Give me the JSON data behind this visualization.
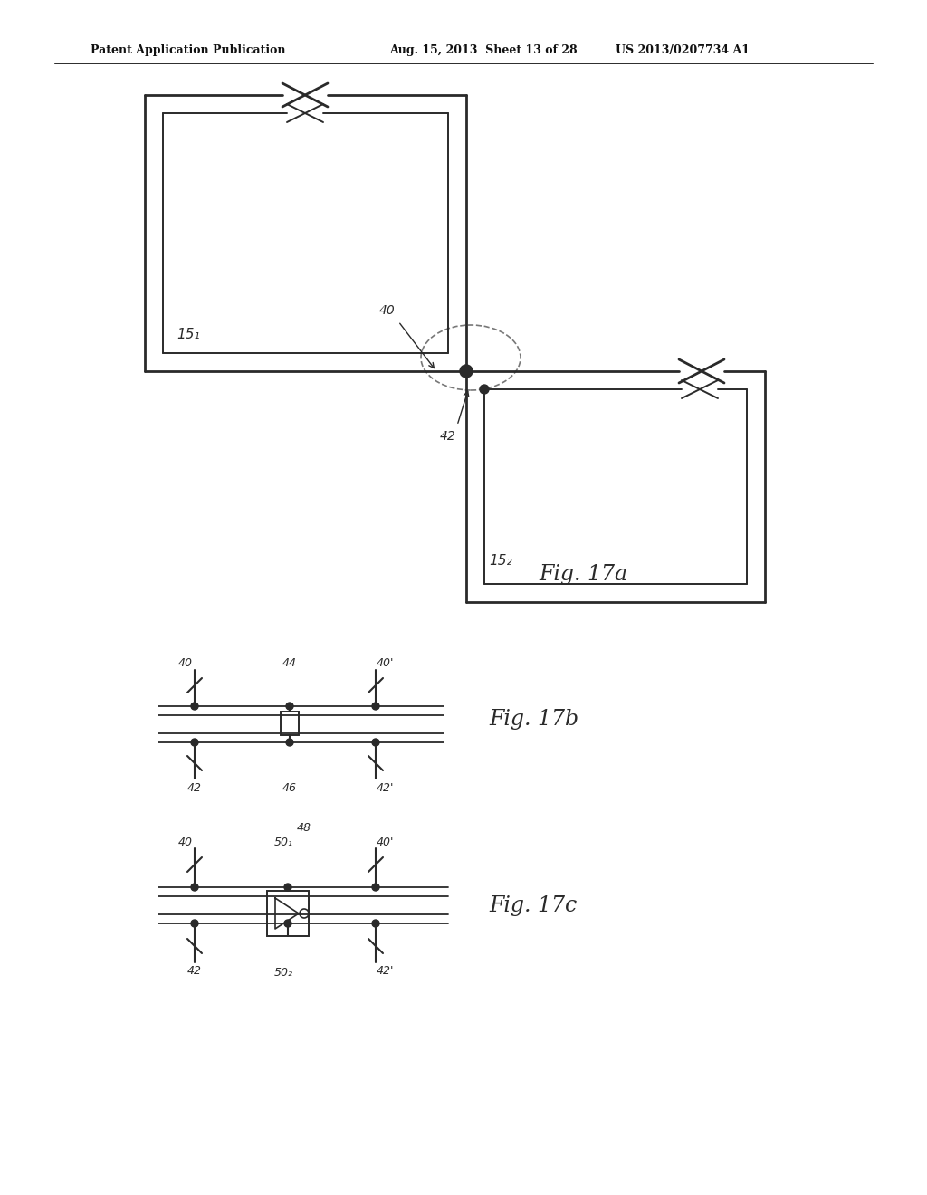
{
  "bg_color": "#ffffff",
  "line_color": "#2a2a2a",
  "header_text_left": "Patent Application Publication",
  "header_text_mid": "Aug. 15, 2013  Sheet 13 of 28",
  "header_text_right": "US 2013/0207734 A1",
  "fig17a_label": "Fig. 17a",
  "fig17b_label": "Fig. 17b",
  "fig17c_label": "Fig. 17c"
}
